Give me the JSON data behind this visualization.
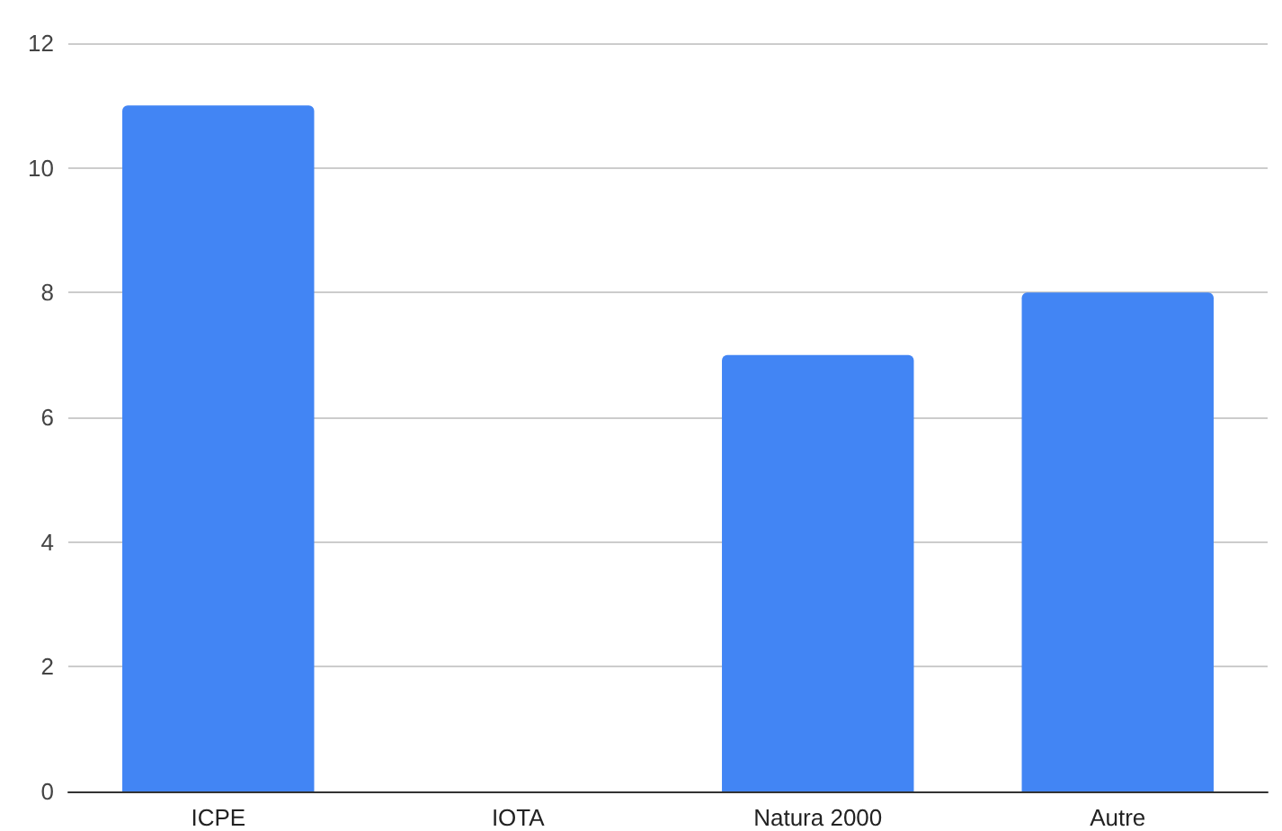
{
  "chart_data": {
    "type": "bar",
    "categories": [
      "ICPE",
      "IOTA",
      "Natura 2000",
      "Autre"
    ],
    "values": [
      11,
      0,
      7,
      8
    ],
    "color": "#4285f4",
    "ylim": [
      0,
      12
    ],
    "yticks": [
      0,
      2,
      4,
      6,
      8,
      10,
      12
    ],
    "grid": "y"
  }
}
